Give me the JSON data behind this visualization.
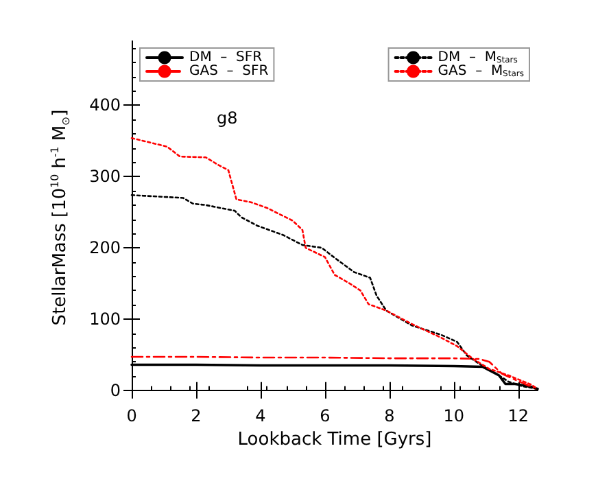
{
  "chart_data": {
    "type": "line",
    "xlabel": "Lookback Time [Gyrs]",
    "ylabel": "StellarMass [10$^{10}$ h$^{-1}$ M$_{⊙}$]",
    "annotations": [
      "g8"
    ],
    "xlim": [
      0,
      12.6
    ],
    "xticks": [
      0,
      2,
      4,
      6,
      8,
      10,
      12
    ],
    "ylim": [
      -5,
      490
    ],
    "yticks": [
      0,
      100,
      200,
      300,
      400
    ],
    "grid": false,
    "legend": "top",
    "marker": "none",
    "series": [
      {
        "name": "DM  –  SFR",
        "color": "#000000",
        "line_style": "solid",
        "x": [
          0,
          2,
          4,
          6,
          8,
          10,
          10.9,
          11.4,
          11.6,
          11.9,
          12.4,
          12.6
        ],
        "values": [
          36,
          36,
          35,
          35,
          35,
          34,
          33,
          21,
          9,
          9,
          5,
          2
        ]
      },
      {
        "name": "GAS  –  SFR",
        "color": "#ff0000",
        "line_style": "dashed",
        "x": [
          0,
          2,
          4,
          6,
          8,
          10,
          10.8,
          11.1,
          11.5,
          11.8,
          12.1,
          12.6
        ],
        "values": [
          47,
          47,
          46,
          46,
          45,
          45,
          44,
          40,
          23,
          17,
          11,
          1
        ]
      },
      {
        "name": "DM  –  M$_{Stars}$",
        "color": "#000000",
        "line_style": "dotted",
        "x": [
          0,
          1.6,
          1.9,
          2.3,
          3.2,
          3.4,
          3.9,
          4.7,
          5.3,
          5.9,
          6.3,
          6.9,
          7.4,
          7.6,
          7.9,
          8.7,
          9.6,
          10.1,
          10.4,
          10.9,
          11.4,
          11.7,
          12.1,
          12.6
        ],
        "values": [
          274,
          270,
          262,
          260,
          252,
          243,
          231,
          218,
          204,
          200,
          186,
          166,
          158,
          133,
          112,
          91,
          78,
          68,
          49,
          34,
          21,
          12,
          6,
          2
        ]
      },
      {
        "name": "GAS  –  M$_{Stars}$",
        "color": "#ff0000",
        "line_style": "dotted",
        "x": [
          0,
          1.1,
          1.5,
          2.3,
          2.7,
          3,
          3.25,
          3.7,
          4.2,
          5,
          5.3,
          5.4,
          6,
          6.3,
          6.8,
          7.1,
          7.35,
          7.9,
          8.7,
          9.6,
          10.1,
          10.6,
          11.1,
          11.7,
          12.4,
          12.6
        ],
        "values": [
          354,
          342,
          328,
          327,
          316,
          309,
          268,
          264,
          256,
          238,
          225,
          200,
          187,
          162,
          149,
          140,
          121,
          112,
          93,
          74,
          62,
          44,
          30,
          21,
          8,
          2
        ]
      }
    ]
  }
}
